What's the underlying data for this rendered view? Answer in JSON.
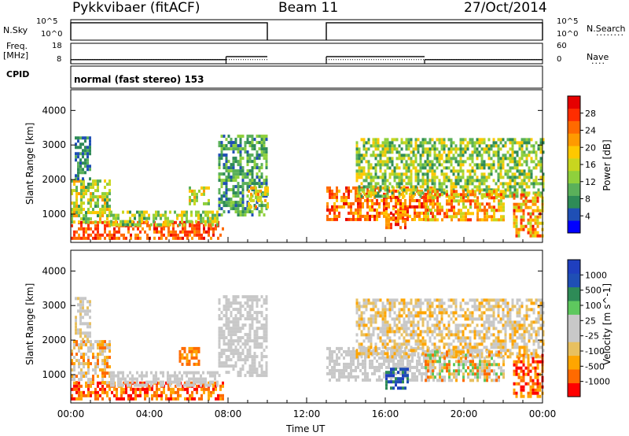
{
  "header": {
    "station": "Pykkvibaer (fitACF)",
    "beam": "Beam 11",
    "date": "27/Oct/2014"
  },
  "colors": {
    "power": [
      "#0000ff",
      "#1f4fb5",
      "#2e8b57",
      "#5ab05a",
      "#8fd03c",
      "#c8d61f",
      "#ffc800",
      "#ff9a00",
      "#ff6a00",
      "#ff2d00",
      "#e60000"
    ],
    "velocity": [
      "#ff0000",
      "#ff6a00",
      "#ffa500",
      "#e8c060",
      "#c8c8c8",
      "#c8c8c8",
      "#5ec85e",
      "#2e8b57",
      "#1f4fb5",
      "#1f3fbf"
    ]
  },
  "chart_data": [
    {
      "type": "line",
      "name": "nsky-nsearch",
      "labels": {
        "left": "N.Sky",
        "right": "N.Search",
        "left_ticks": [
          "10^5",
          "10^0"
        ],
        "right_ticks": [
          "10^5",
          "10^0"
        ]
      },
      "x_range_hours": [
        0,
        24
      ],
      "segments": [
        {
          "start": 0.0,
          "end": 10.0
        },
        {
          "start": 13.0,
          "end": 24.0
        }
      ],
      "level": 0.85
    },
    {
      "type": "line",
      "name": "freq-nave",
      "labels": {
        "left_top": "Freq.",
        "left_unit": "[MHz]",
        "right": "Nave",
        "left_ticks": [
          "18",
          "8"
        ],
        "right_ticks": [
          "60",
          "0"
        ]
      },
      "x_range_hours": [
        0,
        24
      ],
      "freq_segments": [
        {
          "start": 0.0,
          "end": 7.9,
          "value": 10.0
        },
        {
          "start": 7.9,
          "end": 10.0,
          "value": 11.5
        },
        {
          "start": 13.0,
          "end": 18.0,
          "value": 11.5
        },
        {
          "start": 18.0,
          "end": 24.0,
          "value": 10.0
        }
      ],
      "nave_level": 12
    },
    {
      "type": "table",
      "name": "cpid",
      "label": "CPID",
      "text": "normal (fast stereo) 153"
    },
    {
      "type": "heatmap",
      "name": "power",
      "ylabel": "Slant Range [km]",
      "y_ticks": [
        1000,
        2000,
        3000,
        4000
      ],
      "ylim": [
        180,
        4600
      ],
      "x_range_hours": [
        0,
        24
      ],
      "colorbar_label": "Power [dB]",
      "colorbar_ticks": [
        "4",
        "8",
        "12",
        "16",
        "20",
        "24",
        "28"
      ],
      "colorbar_range": [
        0,
        32
      ],
      "regions": [
        {
          "t0": 0.0,
          "t1": 7.8,
          "r0": 300,
          "r1": 800,
          "v0": 22,
          "v1": 30
        },
        {
          "t0": 0.0,
          "t1": 2.0,
          "r0": 800,
          "r1": 2000,
          "v0": 8,
          "v1": 22
        },
        {
          "t0": 0.2,
          "t1": 1.0,
          "r0": 2000,
          "r1": 3250,
          "v0": 4,
          "v1": 10
        },
        {
          "t0": 2.0,
          "t1": 7.5,
          "r0": 700,
          "r1": 1100,
          "v0": 8,
          "v1": 20
        },
        {
          "t0": 6.0,
          "t1": 7.0,
          "r0": 1300,
          "r1": 1800,
          "v0": 10,
          "v1": 22
        },
        {
          "t0": 7.5,
          "t1": 10.0,
          "r0": 1000,
          "r1": 3300,
          "v0": 4,
          "v1": 14
        },
        {
          "t0": 9.0,
          "t1": 10.0,
          "r0": 1200,
          "r1": 1800,
          "v0": 12,
          "v1": 24
        },
        {
          "t0": 13.0,
          "t1": 18.5,
          "r0": 800,
          "r1": 1800,
          "v0": 18,
          "v1": 30
        },
        {
          "t0": 14.5,
          "t1": 24.0,
          "r0": 1500,
          "r1": 3200,
          "v0": 6,
          "v1": 20
        },
        {
          "t0": 16.0,
          "t1": 17.2,
          "r0": 600,
          "r1": 1200,
          "v0": 20,
          "v1": 30
        },
        {
          "t0": 18.0,
          "t1": 22.0,
          "r0": 800,
          "r1": 1700,
          "v0": 14,
          "v1": 28
        },
        {
          "t0": 22.5,
          "t1": 24.0,
          "r0": 400,
          "r1": 1600,
          "v0": 14,
          "v1": 30
        }
      ]
    },
    {
      "type": "heatmap",
      "name": "velocity",
      "ylabel": "Slant Range [km]",
      "y_ticks": [
        1000,
        2000,
        3000,
        4000
      ],
      "ylim": [
        180,
        4600
      ],
      "x_range_hours": [
        0,
        24
      ],
      "xlabel": "Time UT",
      "x_tick_labels": [
        "00:00",
        "04:00",
        "08:00",
        "12:00",
        "16:00",
        "20:00",
        "00:00"
      ],
      "x_ticks_hours": [
        0,
        4,
        8,
        12,
        16,
        20,
        24
      ],
      "colorbar_label": "Velocity [m s^-1]",
      "colorbar_ticks": [
        "1000",
        "500",
        "100",
        "25",
        "-25",
        "-100",
        "-500",
        "-1000"
      ],
      "regions": [
        {
          "t0": 0.0,
          "t1": 7.8,
          "r0": 300,
          "r1": 800,
          "v0": 0,
          "v1": 2
        },
        {
          "t0": 0.0,
          "t1": 2.0,
          "r0": 800,
          "r1": 2000,
          "v0": 1,
          "v1": 5
        },
        {
          "t0": 0.2,
          "t1": 1.0,
          "r0": 2000,
          "r1": 3250,
          "v0": 3,
          "v1": 5
        },
        {
          "t0": 2.0,
          "t1": 7.5,
          "r0": 700,
          "r1": 1100,
          "v0": 4,
          "v1": 5
        },
        {
          "t0": 5.5,
          "t1": 6.5,
          "r0": 1300,
          "r1": 1800,
          "v0": 1,
          "v1": 2
        },
        {
          "t0": 7.5,
          "t1": 10.0,
          "r0": 1000,
          "r1": 3300,
          "v0": 4,
          "v1": 5
        },
        {
          "t0": 13.0,
          "t1": 18.5,
          "r0": 800,
          "r1": 1800,
          "v0": 4,
          "v1": 5
        },
        {
          "t0": 14.5,
          "t1": 24.0,
          "r0": 1500,
          "r1": 3200,
          "v0": 2,
          "v1": 5
        },
        {
          "t0": 16.0,
          "t1": 17.2,
          "r0": 600,
          "r1": 1200,
          "v0": 7,
          "v1": 9
        },
        {
          "t0": 18.0,
          "t1": 22.0,
          "r0": 800,
          "r1": 1700,
          "v0": 1,
          "v1": 6
        },
        {
          "t0": 22.5,
          "t1": 24.0,
          "r0": 400,
          "r1": 1600,
          "v0": 0,
          "v1": 2
        }
      ]
    }
  ]
}
